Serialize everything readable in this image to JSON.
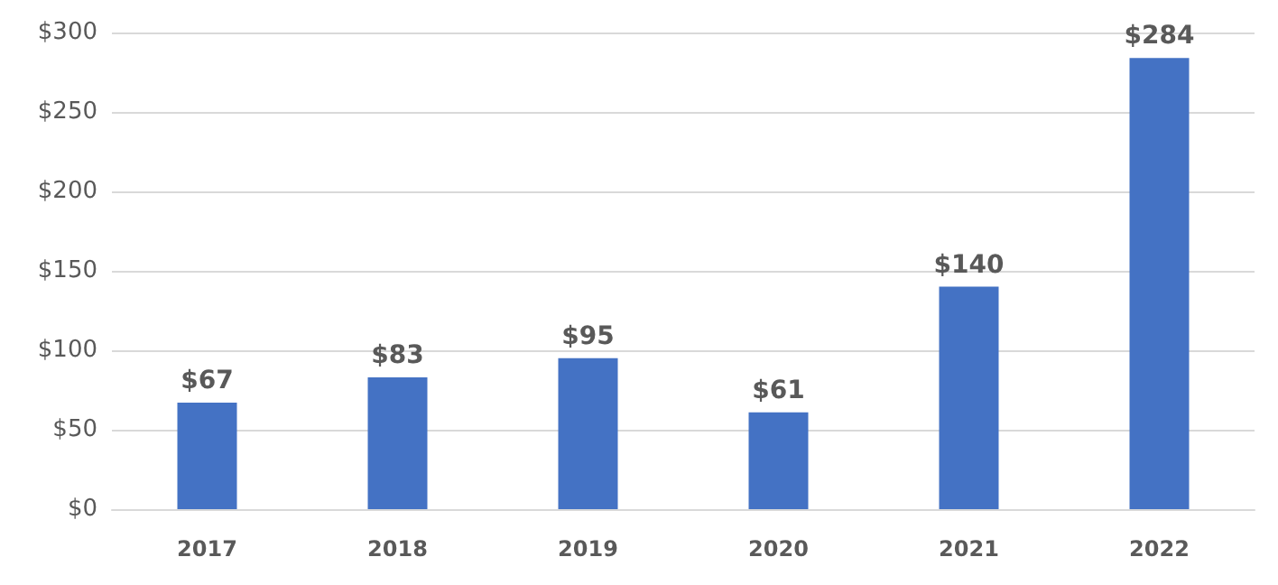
{
  "chart_data": {
    "type": "bar",
    "categories": [
      "2017",
      "2018",
      "2019",
      "2020",
      "2021",
      "2022"
    ],
    "values": [
      67,
      83,
      95,
      61,
      140,
      284
    ],
    "value_labels": [
      "$67",
      "$83",
      "$95",
      "$61",
      "$140",
      "$284"
    ],
    "color": "#4472c4",
    "ylim": [
      0,
      300
    ],
    "yticks": [
      {
        "value": 0,
        "label": "$0"
      },
      {
        "value": 50,
        "label": "$50"
      },
      {
        "value": 100,
        "label": "$100"
      },
      {
        "value": 150,
        "label": "$150"
      },
      {
        "value": 200,
        "label": "$200"
      },
      {
        "value": 250,
        "label": "$250"
      },
      {
        "value": 300,
        "label": "$300"
      }
    ],
    "grid": "y"
  }
}
